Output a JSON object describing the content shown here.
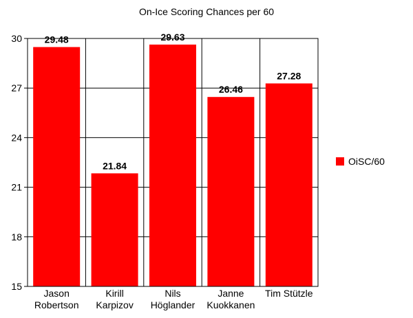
{
  "chart_data": {
    "type": "bar",
    "title": "On-Ice Scoring Chances per 60",
    "xlabel": "",
    "ylabel": "",
    "categories": [
      [
        "Jason",
        "Robertson"
      ],
      [
        "Kirill",
        "Karpizov"
      ],
      [
        "Nils",
        "Höglander"
      ],
      [
        "Janne",
        "Kuokkanen"
      ],
      [
        "Tim Stützle"
      ]
    ],
    "series": [
      {
        "name": "OiSC/60",
        "values": [
          29.48,
          21.84,
          29.63,
          26.46,
          27.28
        ],
        "color": "#ff0000"
      }
    ],
    "data_labels": [
      "29.48",
      "21.84",
      "29.63",
      "26.46",
      "27.28"
    ],
    "ylim": [
      15,
      30
    ],
    "yticks": [
      15,
      18,
      21,
      24,
      27,
      30
    ],
    "grid": true,
    "legend_position": "right"
  }
}
